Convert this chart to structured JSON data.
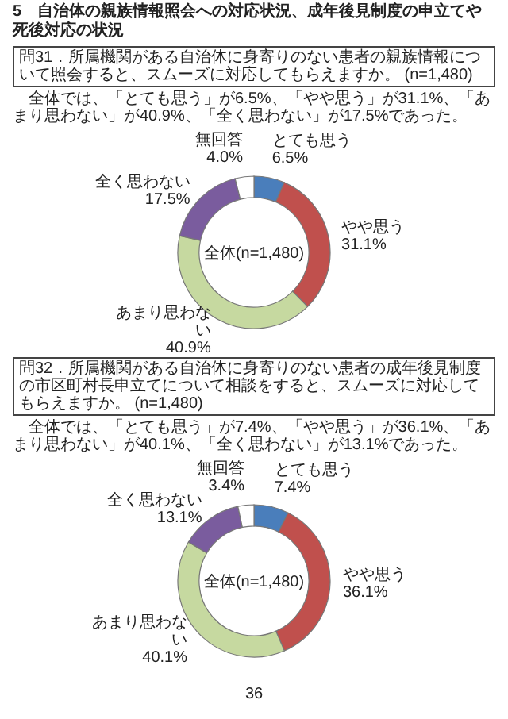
{
  "chart_data": [
    {
      "type": "donut",
      "title": "5　自治体の親族情報照会への対応状況、成年後見制度の申立てや死後対応の状況",
      "subtitle": "問31．所属機関がある自治体に身寄りのない患者の親族情報について照会すると、スムーズに対応してもらえますか。 (n=1,480)",
      "annotations": [
        "全体では、「とても思う」が6.5%、「やや思う」が31.1%、「あまり思わない」が40.9%、「全く思わない」が17.5%であった。",
        "全体(n=1,480)"
      ],
      "categories": [
        "とても思う",
        "やや思う",
        "あまり思わない",
        "全く思わない",
        "無回答"
      ],
      "values": [
        6.5,
        31.1,
        40.9,
        17.5,
        4.0
      ],
      "value_labels": [
        "6.5%",
        "31.1%",
        "40.9%",
        "17.5%",
        "4.0%"
      ],
      "colors": [
        "#4a7ebb",
        "#c0504d",
        "#c6d9a0",
        "#7a5c9e",
        "#ffffff"
      ]
    },
    {
      "type": "donut",
      "subtitle": "問32．所属機関がある自治体に身寄りのない患者の成年後見制度の市区町村長申立てについて相談をすると、スムーズに対応してもらえますか。 (n=1,480)",
      "annotations": [
        "全体では、「とても思う」が7.4%、「やや思う」が36.1%、「あまり思わない」が40.1%、「全く思わない」が13.1%であった。",
        "全体(n=1,480)",
        "36"
      ],
      "categories": [
        "とても思う",
        "やや思う",
        "あまり思わない",
        "全く思わない",
        "無回答"
      ],
      "values": [
        7.4,
        36.1,
        40.1,
        13.1,
        3.4
      ],
      "value_labels": [
        "7.4%",
        "36.1%",
        "40.1%",
        "13.1%",
        "3.4%"
      ],
      "colors": [
        "#4a7ebb",
        "#c0504d",
        "#c6d9a0",
        "#7a5c9e",
        "#ffffff"
      ]
    }
  ]
}
